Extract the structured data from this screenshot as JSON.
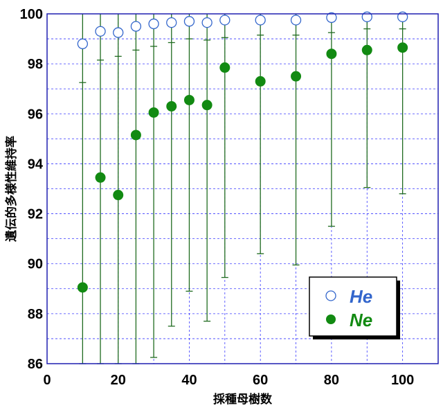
{
  "chart_data": {
    "type": "scatter",
    "xlabel": "採種母樹数",
    "ylabel": "遺伝的多様性維持率",
    "xlim": [
      0,
      110
    ],
    "ylim": [
      86,
      100
    ],
    "x_ticks": [
      0,
      20,
      40,
      60,
      80,
      100
    ],
    "y_ticks": [
      86,
      88,
      90,
      92,
      94,
      96,
      98,
      100
    ],
    "grid": true,
    "legend_position": "bottom-right",
    "x": [
      10,
      15,
      20,
      25,
      30,
      35,
      40,
      45,
      50,
      60,
      70,
      80,
      90,
      100
    ],
    "series": [
      {
        "name": "He",
        "marker": "open-circle",
        "color": "#3366cc",
        "values": [
          98.8,
          99.3,
          99.25,
          99.5,
          99.6,
          99.65,
          99.7,
          99.65,
          99.75,
          99.75,
          99.75,
          99.85,
          99.88,
          99.88
        ],
        "err_low": [
          97.25,
          98.15,
          98.3,
          98.55,
          98.7,
          98.85,
          99.0,
          98.95,
          99.05,
          99.15,
          99.15,
          99.25,
          99.4,
          99.4
        ]
      },
      {
        "name": "Ne",
        "marker": "filled-circle",
        "color": "#128a12",
        "values": [
          89.05,
          93.45,
          92.75,
          95.15,
          96.05,
          96.3,
          96.55,
          96.35,
          97.85,
          97.3,
          97.5,
          98.4,
          98.55,
          98.65
        ],
        "err_low": [
          86,
          86,
          86,
          86,
          86.25,
          87.5,
          88.9,
          87.7,
          89.45,
          90.4,
          89.95,
          91.5,
          93.05,
          92.8
        ],
        "err_high": [
          100,
          100,
          100,
          100,
          100,
          100,
          100,
          100,
          100,
          100,
          100,
          100,
          100,
          100
        ]
      }
    ]
  },
  "colors": {
    "grid": "#3a3aff",
    "axis": "#1f1fb0",
    "he": "#3366cc",
    "he_fill": "#ffffff",
    "ne": "#128a12",
    "errorbar": "#1f6b1f"
  }
}
